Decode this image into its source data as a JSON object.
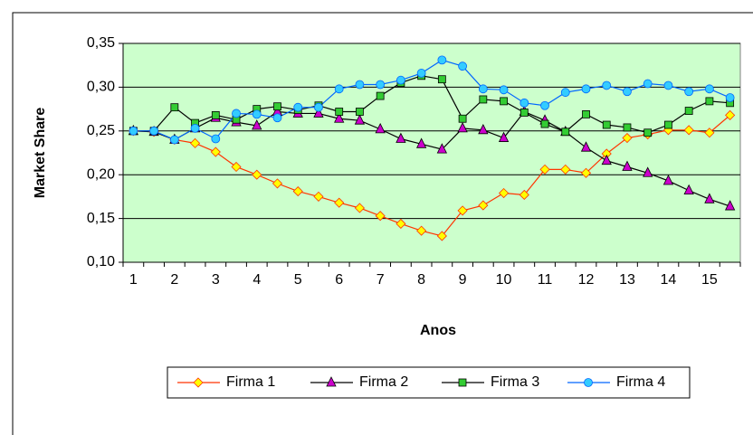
{
  "chart_data": {
    "type": "line",
    "xlabel": "Anos",
    "ylabel": "Market Share",
    "categories": [
      "1",
      null,
      "2",
      null,
      "3",
      null,
      "4",
      null,
      "5",
      null,
      "6",
      null,
      "7",
      null,
      "8",
      null,
      "9",
      null,
      "10",
      null,
      "11",
      null,
      "12",
      null,
      "13",
      null,
      "14",
      null,
      "15",
      null
    ],
    "series": [
      {
        "name": "Firma 1",
        "color": "#ff3300",
        "marker": "diamond",
        "marker_color": "#ffff00",
        "values": [
          0.25,
          0.249,
          0.24,
          0.236,
          0.226,
          0.209,
          0.2,
          0.19,
          0.181,
          0.175,
          0.168,
          0.162,
          0.153,
          0.144,
          0.136,
          0.13,
          0.159,
          0.165,
          0.179,
          0.177,
          0.206,
          0.206,
          0.202,
          0.224,
          0.242,
          0.246,
          0.251,
          0.251,
          0.248,
          0.268
        ]
      },
      {
        "name": "Firma 2",
        "color": "#000000",
        "marker": "triangle",
        "marker_color": "#cc00cc",
        "values": [
          0.25,
          0.249,
          0.24,
          0.253,
          0.265,
          0.26,
          0.256,
          0.272,
          0.27,
          0.27,
          0.264,
          0.262,
          0.252,
          0.241,
          0.235,
          0.229,
          0.253,
          0.251,
          0.242,
          0.272,
          0.262,
          0.249,
          0.231,
          0.216,
          0.209,
          0.202,
          0.193,
          0.182,
          0.172,
          0.164
        ]
      },
      {
        "name": "Firma 3",
        "color": "#000000",
        "marker": "square",
        "marker_color": "#33cc33",
        "values": [
          0.25,
          0.25,
          0.277,
          0.259,
          0.268,
          0.263,
          0.275,
          0.278,
          0.274,
          0.279,
          0.272,
          0.272,
          0.29,
          0.305,
          0.313,
          0.309,
          0.264,
          0.286,
          0.284,
          0.271,
          0.258,
          0.249,
          0.269,
          0.257,
          0.254,
          0.248,
          0.257,
          0.273,
          0.284,
          0.282
        ]
      },
      {
        "name": "Firma 4",
        "color": "#0066ff",
        "marker": "circle",
        "marker_color": "#33ccff",
        "values": [
          0.25,
          0.25,
          0.24,
          0.253,
          0.241,
          0.27,
          0.269,
          0.265,
          0.277,
          0.277,
          0.298,
          0.303,
          0.303,
          0.308,
          0.316,
          0.331,
          0.324,
          0.298,
          0.297,
          0.282,
          0.279,
          0.294,
          0.298,
          0.302,
          0.295,
          0.304,
          0.302,
          0.295,
          0.298,
          0.288
        ]
      }
    ],
    "ylim": [
      0.1,
      0.35
    ],
    "yticks": [
      {
        "value": 0.1,
        "label": "0,10"
      },
      {
        "value": 0.15,
        "label": "0,15"
      },
      {
        "value": 0.2,
        "label": "0,20"
      },
      {
        "value": 0.25,
        "label": "0,25"
      },
      {
        "value": 0.3,
        "label": "0,30"
      },
      {
        "value": 0.35,
        "label": "0,35"
      }
    ],
    "grid": true,
    "background": "#ccffcc",
    "legend": "bottom"
  }
}
